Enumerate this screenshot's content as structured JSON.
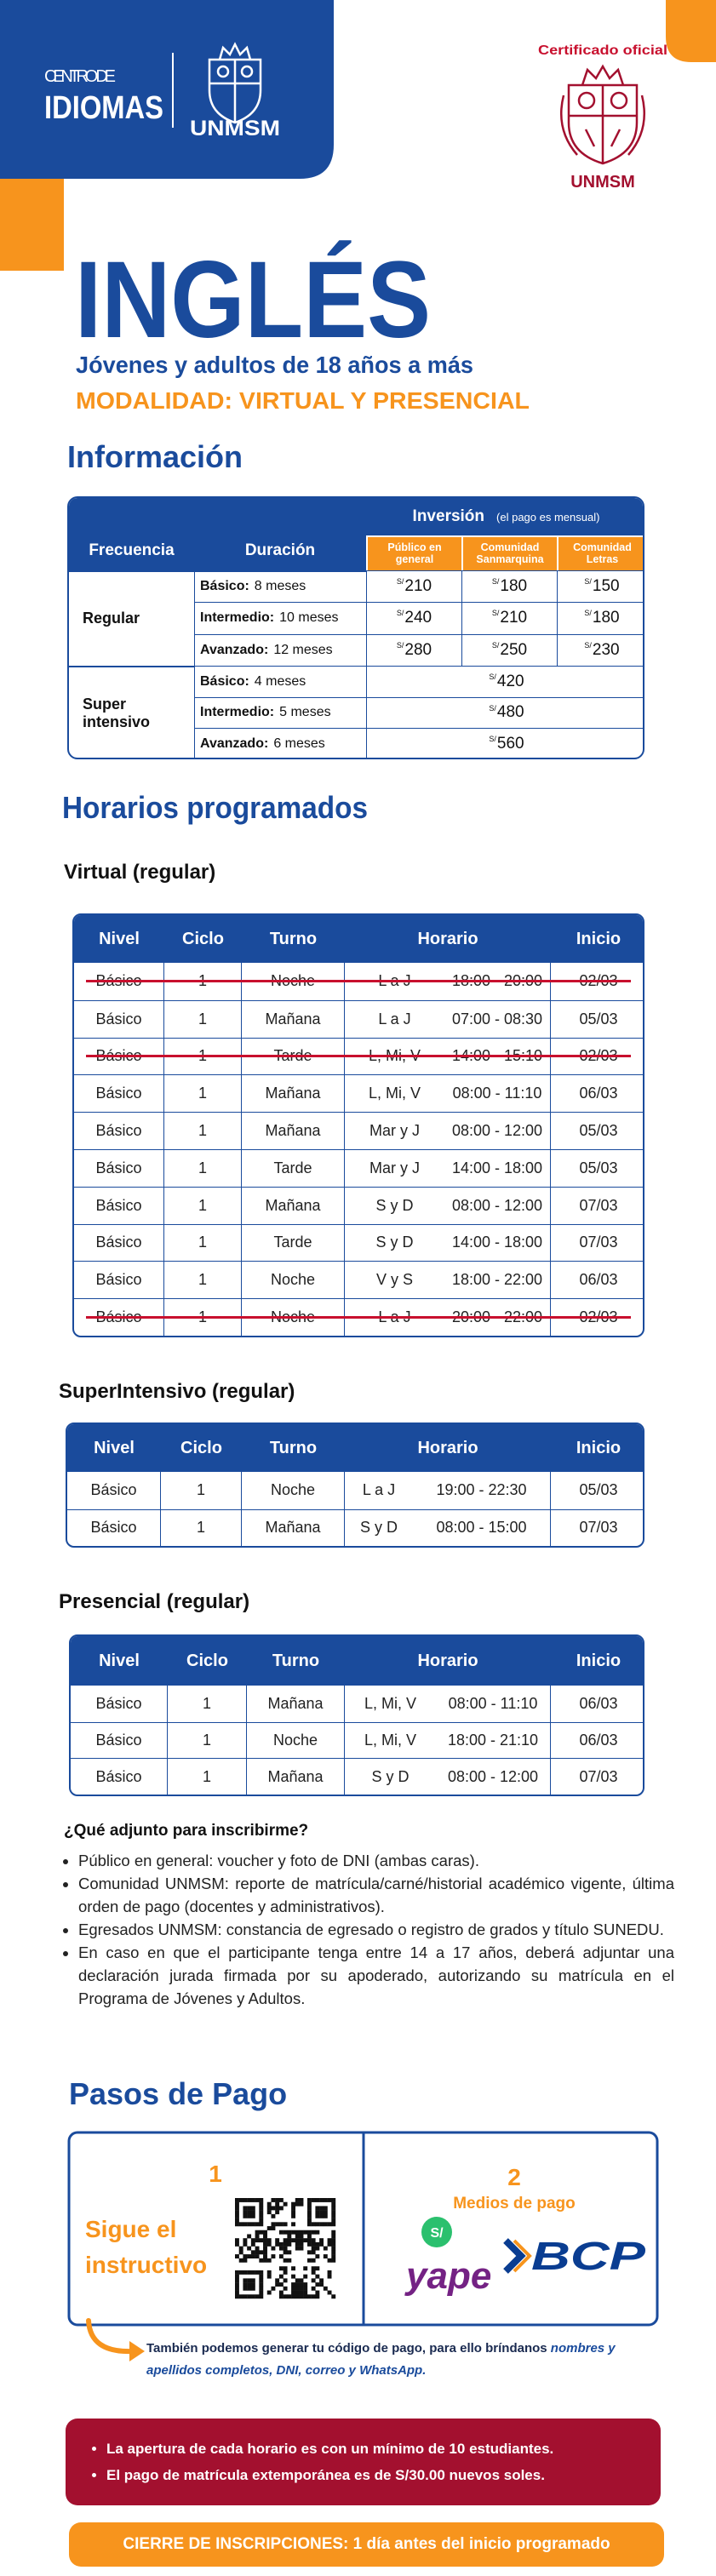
{
  "header": {
    "logo_line1": "CENTRO DE",
    "logo_line2": "IDIOMAS",
    "logo_unmsm": "UNMSM",
    "cert": "Certificado oficial",
    "cert_unmsm": "UNMSM"
  },
  "hero": {
    "title": "INGLÉS",
    "subtitle": "Jóvenes y adultos de 18 años a más",
    "modality": "MODALIDAD: VIRTUAL Y PRESENCIAL"
  },
  "info": {
    "title": "Información",
    "currency": "S/",
    "headers": {
      "frequency": "Frecuencia",
      "duration": "Duración",
      "investment": "Inversión",
      "note": "(el pago es mensual)",
      "public": "Público en general",
      "community": "Comunidad Sanmarquina",
      "letters": "Comunidad Letras"
    },
    "groups": [
      {
        "name": "Regular",
        "rows": [
          {
            "level": "Básico:",
            "duration": "8 meses",
            "prices": [
              210,
              180,
              150
            ]
          },
          {
            "level": "Intermedio:",
            "duration": "10 meses",
            "prices": [
              240,
              210,
              180
            ]
          },
          {
            "level": "Avanzado:",
            "duration": "12 meses",
            "prices": [
              280,
              250,
              230
            ]
          }
        ]
      },
      {
        "name": "Super intensivo",
        "rows": [
          {
            "level": "Básico:",
            "duration": "4 meses",
            "prices": [
              420
            ]
          },
          {
            "level": "Intermedio:",
            "duration": "5 meses",
            "prices": [
              480
            ]
          },
          {
            "level": "Avanzado:",
            "duration": "6 meses",
            "prices": [
              560
            ]
          }
        ]
      }
    ]
  },
  "schedules": {
    "title": "Horarios programados",
    "tables": [
      {
        "title": "Virtual (regular)",
        "headers": [
          "Nivel",
          "Ciclo",
          "Turno",
          "Horario",
          "Inicio"
        ],
        "rows": [
          {
            "cells": [
              "Básico",
              "1",
              "Noche",
              "L a J",
              "18:00 - 20:00",
              "02/03"
            ],
            "cancelled": true
          },
          {
            "cells": [
              "Básico",
              "1",
              "Mañana",
              "L a J",
              "07:00 - 08:30",
              "05/03"
            ]
          },
          {
            "cells": [
              "Básico",
              "1",
              "Tarde",
              "L, Mi, V",
              "14:00 - 15:10",
              "02/03"
            ],
            "cancelled": true
          },
          {
            "cells": [
              "Básico",
              "1",
              "Mañana",
              "L, Mi, V",
              "08:00 - 11:10",
              "06/03"
            ]
          },
          {
            "cells": [
              "Básico",
              "1",
              "Mañana",
              "Mar y J",
              "08:00 - 12:00",
              "05/03"
            ]
          },
          {
            "cells": [
              "Básico",
              "1",
              "Tarde",
              "Mar y J",
              "14:00 - 18:00",
              "05/03"
            ]
          },
          {
            "cells": [
              "Básico",
              "1",
              "Mañana",
              "S y D",
              "08:00 - 12:00",
              "07/03"
            ]
          },
          {
            "cells": [
              "Básico",
              "1",
              "Tarde",
              "S y D",
              "14:00 - 18:00",
              "07/03"
            ]
          },
          {
            "cells": [
              "Básico",
              "1",
              "Noche",
              "V y S",
              "18:00 - 22:00",
              "06/03"
            ]
          },
          {
            "cells": [
              "Básico",
              "1",
              "Noche",
              "L a J",
              "20:00 - 22:00",
              "02/03"
            ],
            "cancelled": true
          }
        ]
      },
      {
        "title": "SuperIntensivo (regular)",
        "headers": [
          "Nivel",
          "Ciclo",
          "Turno",
          "Horario",
          "Inicio"
        ],
        "rows": [
          {
            "cells": [
              "Básico",
              "1",
              "Noche",
              "L a J",
              "19:00 - 22:30",
              "05/03"
            ]
          },
          {
            "cells": [
              "Básico",
              "1",
              "Mañana",
              "S y D",
              "08:00 - 15:00",
              "07/03"
            ]
          }
        ]
      },
      {
        "title": "Presencial (regular)",
        "headers": [
          "Nivel",
          "Ciclo",
          "Turno",
          "Horario",
          "Inicio"
        ],
        "rows": [
          {
            "cells": [
              "Básico",
              "1",
              "Mañana",
              "L, Mi, V",
              "08:00 - 11:10",
              "06/03"
            ]
          },
          {
            "cells": [
              "Básico",
              "1",
              "Noche",
              "L, Mi, V",
              "18:00 - 21:10",
              "06/03"
            ]
          },
          {
            "cells": [
              "Básico",
              "1",
              "Mañana",
              "S y D",
              "08:00 - 12:00",
              "07/03"
            ]
          }
        ]
      }
    ]
  },
  "requirements": {
    "title": "¿Qué adjunto para inscribirme?",
    "items": [
      "Público en general: voucher y foto de DNI (ambas caras).",
      "Comunidad UNMSM: reporte de matrícula/carné/historial académico vigente, última orden de pago (docentes y administrativos).",
      "Egresados UNMSM: constancia de egresado o registro de grados y título SUNEDU.",
      "En caso en que el participante tenga entre 14 a 17 años, deberá adjuntar una declaración jurada firmada por su apoderado, autorizando su matrícula en el Programa de Jóvenes y Adultos."
    ]
  },
  "payment": {
    "title": "Pasos de Pago",
    "step1": {
      "number": "1",
      "text": "Sigue el instructivo"
    },
    "step2": {
      "number": "2",
      "label": "Medios de pago",
      "yape_icon": "S/",
      "yape": "yape",
      "bcp": "BCP"
    },
    "note": {
      "text": "También podemos generar tu código de pago, para ello bríndanos ",
      "emphasis": "nombres y apellidos completos, DNI, correo y WhatsApp."
    }
  },
  "notices": {
    "items": [
      "La apertura de cada horario es con un mínimo de 10 estudiantes.",
      "El pago de matrícula extemporánea es de S/30.00 nuevos soles."
    ]
  },
  "closing": {
    "text": "CIERRE DE INSCRIPCIONES: 1 día antes del inicio programado"
  }
}
